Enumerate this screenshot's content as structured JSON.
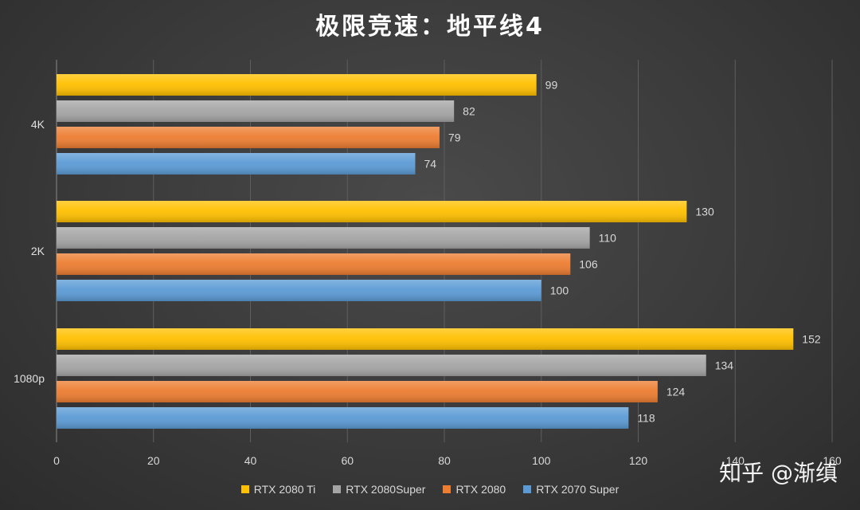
{
  "chart_data": {
    "type": "bar",
    "orientation": "horizontal",
    "title": "极限竞速：地平线4",
    "categories": [
      "4K",
      "2K",
      "1080p"
    ],
    "series": [
      {
        "name": "RTX 2080 Ti",
        "color": "#ffc000",
        "values": [
          99,
          130,
          152
        ]
      },
      {
        "name": "RTX 2080Super",
        "color": "#a5a5a5",
        "values": [
          82,
          110,
          134
        ]
      },
      {
        "name": "RTX 2080",
        "color": "#ed7d31",
        "values": [
          79,
          106,
          124
        ]
      },
      {
        "name": "RTX 2070 Super",
        "color": "#5b9bd5",
        "values": [
          74,
          100,
          118
        ]
      }
    ],
    "xlim": [
      0,
      160
    ],
    "x_ticks": [
      0,
      20,
      40,
      60,
      80,
      100,
      120,
      140,
      160
    ],
    "grid": true,
    "legend_position": "bottom"
  },
  "watermark": "知乎 @渐缜"
}
